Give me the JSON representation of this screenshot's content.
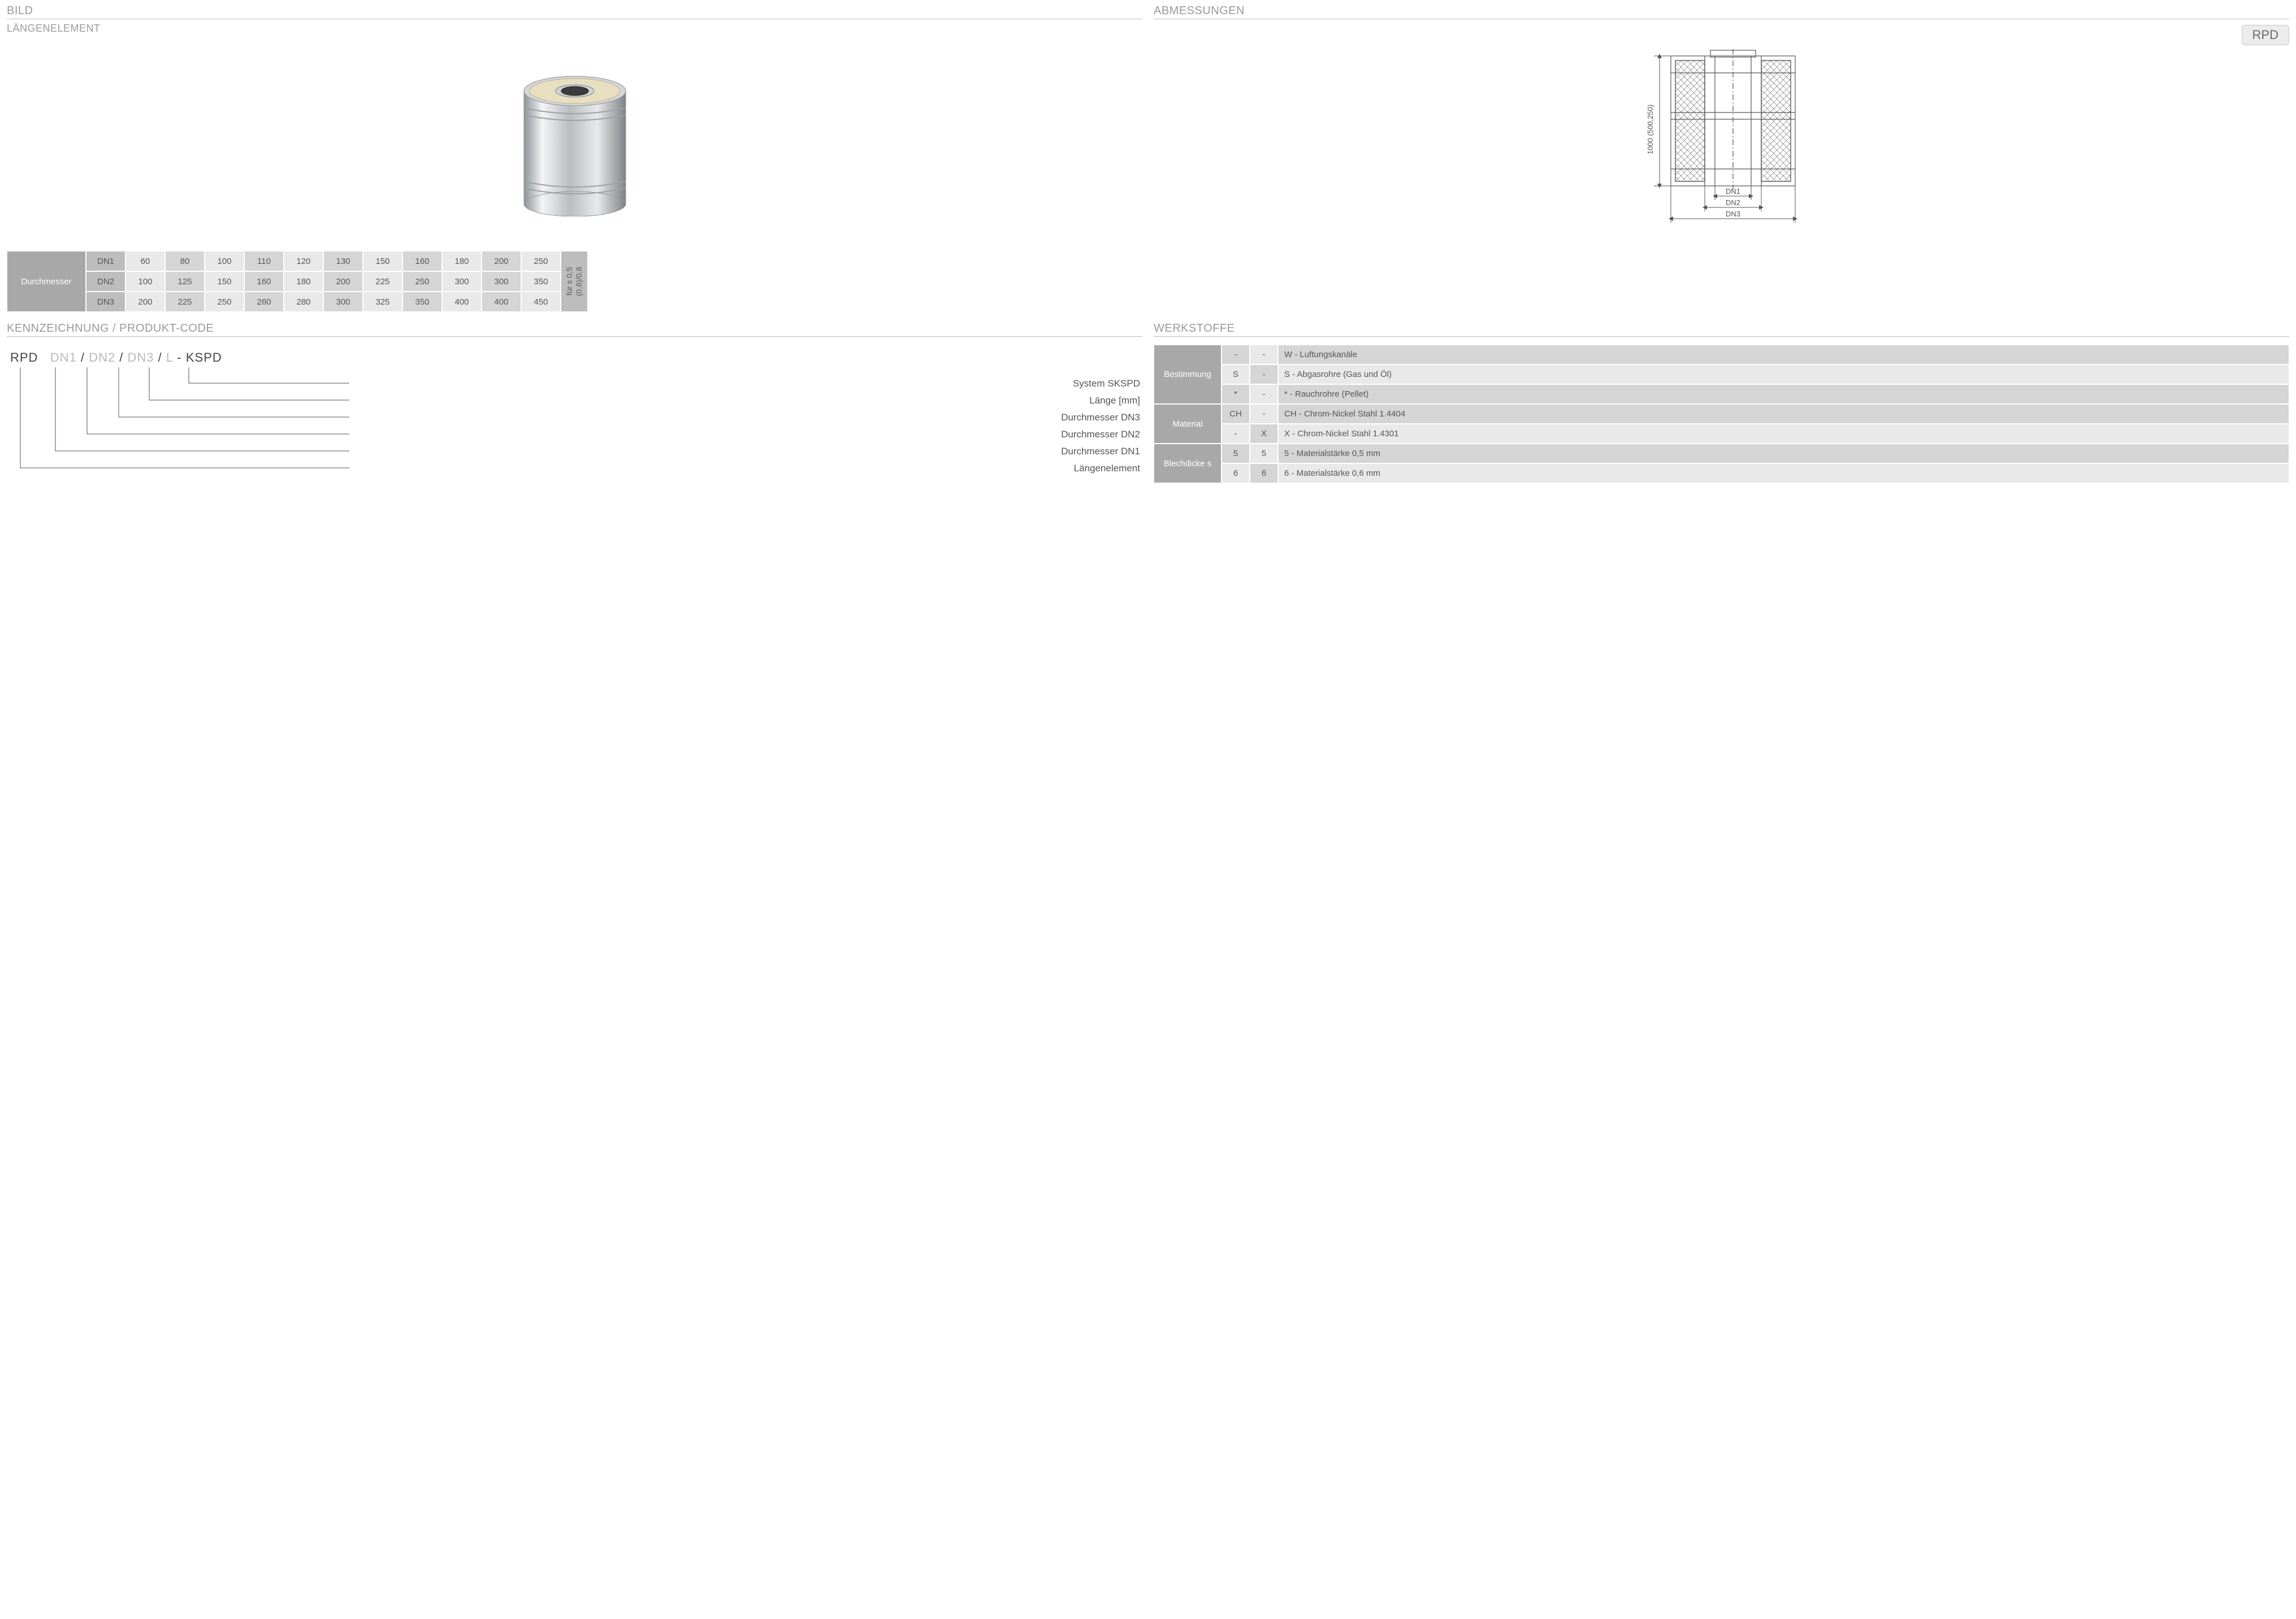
{
  "headers": {
    "bild": "BILD",
    "abmessungen": "ABMESSUNGEN",
    "laengenelement": "LÄNGENELEMENT",
    "kennzeichnung": "KENNZEICHNUNG  / PRODUKT-CODE",
    "werkstoffe": "WERKSTOFFE"
  },
  "badge": "RPD",
  "colors": {
    "section_text": "#9a9a9a",
    "rule": "#bfbfbf",
    "tbl_head": "#a8a8a8",
    "tbl_sub": "#bdbdbd",
    "tbl_c1": "#e9e9e9",
    "tbl_c2": "#d5d5d5",
    "text": "#555555"
  },
  "render3d": {
    "outer_fill": "#d4d6d8",
    "outer_stroke": "#8e9396",
    "top_fill": "#e7dfc0",
    "top_stroke": "#b8b08a",
    "inner_fill": "#4a4a4a",
    "highlight": "#f5f6f7"
  },
  "tech_drawing": {
    "height_label": "1000 (500,250)",
    "dn1": "DN1",
    "dn2": "DN2",
    "dn3": "DN3",
    "stroke": "#555555",
    "hatch": "#6a6a6a"
  },
  "diameter_table": {
    "row_header": "Durchmesser",
    "rows": [
      {
        "label": "DN1",
        "values": [
          "60",
          "80",
          "100",
          "110",
          "120",
          "130",
          "150",
          "160",
          "180",
          "200",
          "250"
        ]
      },
      {
        "label": "DN2",
        "values": [
          "100",
          "125",
          "150",
          "160",
          "180",
          "200",
          "225",
          "250",
          "300",
          "300",
          "350"
        ]
      },
      {
        "label": "DN3",
        "values": [
          "200",
          "225",
          "250",
          "260",
          "280",
          "300",
          "325",
          "350",
          "400",
          "400",
          "450"
        ]
      }
    ],
    "side_note_line1": "für s 0,5",
    "side_note_line2": "(0,6)/0,6"
  },
  "product_code": {
    "prefix": "RPD",
    "ph1": "DN1",
    "ph2": "DN2",
    "ph3": "DN3",
    "ph4": "L",
    "suffix": "KSPD",
    "sep": " / ",
    "dash": " - ",
    "legend": [
      "System SKSPD",
      "Länge [mm]",
      "Durchmesser DN3",
      "Durchmesser DN2",
      "Durchmesser DN1",
      "Längenelement"
    ],
    "indents": [
      280,
      246,
      192,
      136,
      80,
      18
    ]
  },
  "materials": {
    "groups": [
      {
        "label": "Bestimmung",
        "rows": [
          {
            "c1": "-",
            "c2": "-",
            "desc": "W - Luftungskanäle"
          },
          {
            "c1": "S",
            "c2": "-",
            "desc": "S - Abgasrohre (Gas und Öl)"
          },
          {
            "c1": "*",
            "c2": "-",
            "desc": "* - Rauchrohre (Pellet)"
          }
        ]
      },
      {
        "label": "Material",
        "rows": [
          {
            "c1": "CH",
            "c2": "-",
            "desc": "CH - Chrom-Nickel Stahl 1.4404"
          },
          {
            "c1": "-",
            "c2": "X",
            "desc": "X - Chrom-Nickel Stahl 1.4301"
          }
        ]
      },
      {
        "label": "Blechdicke s",
        "rows": [
          {
            "c1": "5",
            "c2": "5",
            "desc": "5 - Materialstärke 0,5 mm"
          },
          {
            "c1": "6",
            "c2": "6",
            "desc": "6 - Materialstärke 0,6 mm"
          }
        ]
      }
    ]
  }
}
